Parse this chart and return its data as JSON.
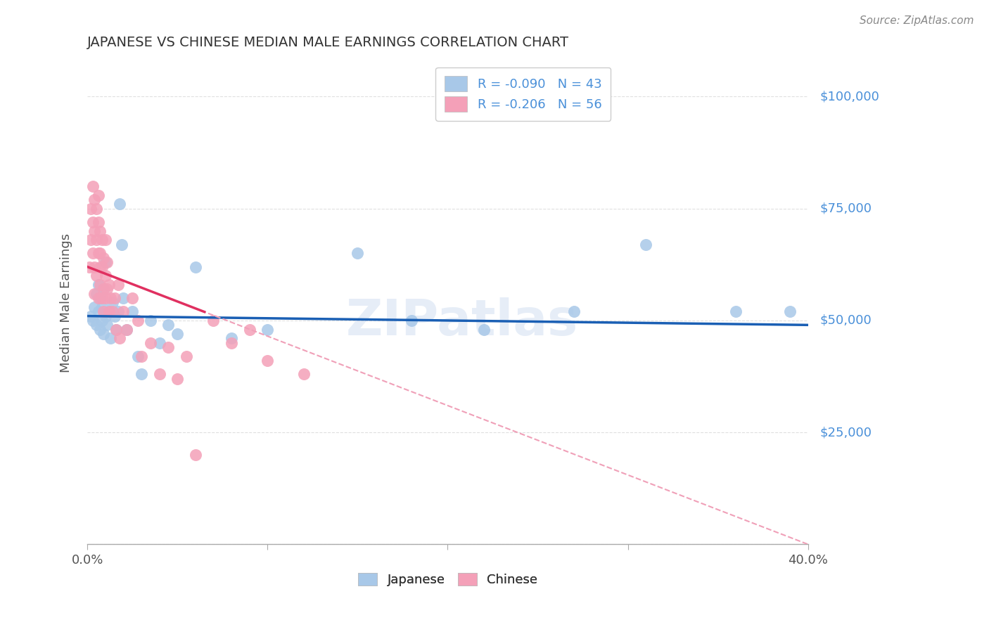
{
  "title": "JAPANESE VS CHINESE MEDIAN MALE EARNINGS CORRELATION CHART",
  "source": "Source: ZipAtlas.com",
  "ylabel": "Median Male Earnings",
  "xlim": [
    0.0,
    0.4
  ],
  "ylim": [
    0,
    108000
  ],
  "xtick_positions": [
    0.0,
    0.1,
    0.2,
    0.3,
    0.4
  ],
  "yticks": [
    0,
    25000,
    50000,
    75000,
    100000
  ],
  "ytick_labels": [
    "",
    "$25,000",
    "$50,000",
    "$75,000",
    "$100,000"
  ],
  "japanese_color": "#a8c8e8",
  "chinese_color": "#f4a0b8",
  "japanese_line_color": "#1a5fb4",
  "chinese_line_solid_color": "#e03060",
  "chinese_line_dash_color": "#f0a0b8",
  "japanese_x": [
    0.002,
    0.003,
    0.004,
    0.005,
    0.005,
    0.006,
    0.006,
    0.007,
    0.007,
    0.008,
    0.008,
    0.009,
    0.009,
    0.01,
    0.01,
    0.011,
    0.012,
    0.013,
    0.014,
    0.015,
    0.016,
    0.017,
    0.018,
    0.019,
    0.02,
    0.022,
    0.025,
    0.028,
    0.03,
    0.035,
    0.04,
    0.045,
    0.05,
    0.06,
    0.08,
    0.1,
    0.15,
    0.18,
    0.22,
    0.27,
    0.31,
    0.36,
    0.39
  ],
  "japanese_y": [
    51000,
    50000,
    53000,
    56000,
    49000,
    52000,
    58000,
    48000,
    55000,
    53000,
    50000,
    57000,
    47000,
    51000,
    63000,
    49000,
    52000,
    46000,
    54000,
    51000,
    48000,
    52000,
    76000,
    67000,
    55000,
    48000,
    52000,
    42000,
    38000,
    50000,
    45000,
    49000,
    47000,
    62000,
    46000,
    48000,
    65000,
    50000,
    48000,
    52000,
    67000,
    52000,
    52000
  ],
  "chinese_x": [
    0.001,
    0.002,
    0.002,
    0.003,
    0.003,
    0.003,
    0.004,
    0.004,
    0.004,
    0.004,
    0.005,
    0.005,
    0.005,
    0.006,
    0.006,
    0.006,
    0.006,
    0.007,
    0.007,
    0.007,
    0.007,
    0.008,
    0.008,
    0.008,
    0.009,
    0.009,
    0.009,
    0.01,
    0.01,
    0.01,
    0.011,
    0.011,
    0.012,
    0.012,
    0.013,
    0.014,
    0.015,
    0.016,
    0.017,
    0.018,
    0.02,
    0.022,
    0.025,
    0.028,
    0.03,
    0.035,
    0.04,
    0.045,
    0.05,
    0.055,
    0.06,
    0.07,
    0.08,
    0.09,
    0.1,
    0.12
  ],
  "chinese_y": [
    62000,
    68000,
    75000,
    65000,
    72000,
    80000,
    62000,
    70000,
    77000,
    56000,
    68000,
    75000,
    60000,
    65000,
    72000,
    55000,
    78000,
    62000,
    70000,
    58000,
    65000,
    55000,
    62000,
    68000,
    57000,
    64000,
    52000,
    60000,
    68000,
    55000,
    57000,
    63000,
    52000,
    58000,
    55000,
    52000,
    55000,
    48000,
    58000,
    46000,
    52000,
    48000,
    55000,
    50000,
    42000,
    45000,
    38000,
    44000,
    37000,
    42000,
    20000,
    50000,
    45000,
    48000,
    41000,
    38000
  ],
  "watermark": "ZIPatlas",
  "bg_color": "#ffffff",
  "grid_color": "#e0e0e0",
  "title_color": "#333333",
  "ytick_color": "#4a90d9",
  "source_color": "#888888"
}
